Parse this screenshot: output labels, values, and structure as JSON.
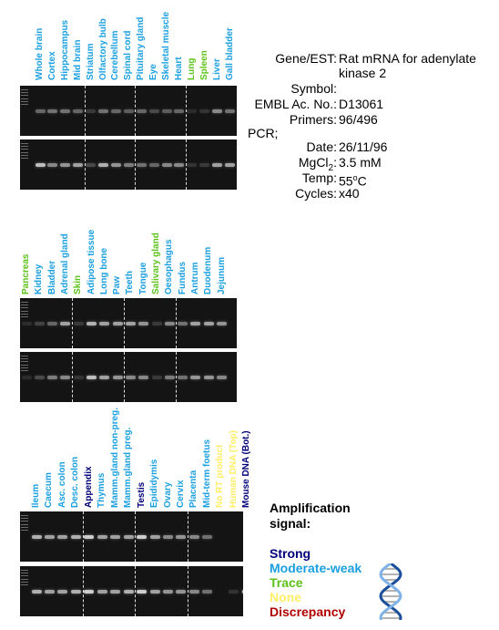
{
  "gene_info": {
    "gene_est_label": "Gene/EST:",
    "gene_est_value_line1": "Rat mRNA for adenylate",
    "gene_est_value_line2": "kinase 2",
    "symbol_label": "Symbol:",
    "symbol_value": "",
    "embl_label": "EMBL Ac. No.:",
    "embl_value": "D13061",
    "primers_label": "Primers:",
    "primers_value": "96/496",
    "pcr_label": "PCR;",
    "date_label": "Date:",
    "date_value": "26/11/96",
    "mgcl2_label": "MgCl",
    "mgcl2_sub": "2",
    "mgcl2_colon": ":",
    "mgcl2_value": "3.5 mM",
    "temp_label": "Temp:",
    "temp_value": "55",
    "temp_sup": "o",
    "temp_unit": "C",
    "cycles_label": "Cycles:",
    "cycles_value": "x40"
  },
  "legend": {
    "title": "Amplification\nsignal:",
    "items": [
      {
        "label": "Strong",
        "color": "#00007a"
      },
      {
        "label": "Moderate-weak",
        "color": "#1a9fe0"
      },
      {
        "label": "Trace",
        "color": "#5cc21a"
      },
      {
        "label": "None",
        "color": "#ffee66"
      },
      {
        "label": "Discrepancy",
        "color": "#b00000"
      }
    ]
  },
  "dna_icon": "dna-double-helix-icon",
  "panels": [
    {
      "tissues": [
        {
          "name": "Whole brain",
          "signal": "Moderate-weak"
        },
        {
          "name": "Cortex",
          "signal": "Moderate-weak"
        },
        {
          "name": "Hippocampus",
          "signal": "Moderate-weak"
        },
        {
          "name": "Mid brain",
          "signal": "Moderate-weak"
        },
        {
          "name": "Striatum",
          "signal": "Moderate-weak"
        },
        {
          "name": "Olfactory bulb",
          "signal": "Moderate-weak"
        },
        {
          "name": "Cerebellum",
          "signal": "Moderate-weak"
        },
        {
          "name": "Spinal cord",
          "signal": "Moderate-weak"
        },
        {
          "name": "Pituitary gland",
          "signal": "Moderate-weak"
        },
        {
          "name": "Eye",
          "signal": "Moderate-weak"
        },
        {
          "name": "Skeletal muscle",
          "signal": "Moderate-weak"
        },
        {
          "name": "Heart",
          "signal": "Moderate-weak"
        },
        {
          "name": "Lung",
          "signal": "Trace"
        },
        {
          "name": "Spleen",
          "signal": "Trace"
        },
        {
          "name": "Liver",
          "signal": "Moderate-weak"
        },
        {
          "name": "Gall bladder",
          "signal": "Moderate-weak"
        }
      ],
      "dividers_after": [
        4,
        8,
        12
      ],
      "gel_bands": [
        [
          0.45,
          0.5,
          0.5,
          0.45,
          0.2,
          0.5,
          0.45,
          0.4,
          0.45,
          0.3,
          0.4,
          0.45,
          0.1,
          0.15,
          0.6,
          0.5
        ],
        [
          0.8,
          0.6,
          0.65,
          0.7,
          0.3,
          0.75,
          0.65,
          0.55,
          0.5,
          0.45,
          0.6,
          0.6,
          0.15,
          0.2,
          0.7,
          0.7
        ]
      ]
    },
    {
      "tissues": [
        {
          "name": "Pancreas",
          "signal": "Trace"
        },
        {
          "name": "Kidney",
          "signal": "Moderate-weak"
        },
        {
          "name": "Bladder",
          "signal": "Moderate-weak"
        },
        {
          "name": "Adrenal gland",
          "signal": "Moderate-weak"
        },
        {
          "name": "Skin",
          "signal": "Trace"
        },
        {
          "name": "Adipose tissue",
          "signal": "Moderate-weak"
        },
        {
          "name": "Long bone",
          "signal": "Moderate-weak"
        },
        {
          "name": "Paw",
          "signal": "Moderate-weak"
        },
        {
          "name": "Teeth",
          "signal": "Moderate-weak"
        },
        {
          "name": "Tongue",
          "signal": "Moderate-weak"
        },
        {
          "name": "Salivary gland",
          "signal": "Trace"
        },
        {
          "name": "Oesophagus",
          "signal": "Moderate-weak"
        },
        {
          "name": "Fundus",
          "signal": "Moderate-weak"
        },
        {
          "name": "Antrum",
          "signal": "Moderate-weak"
        },
        {
          "name": "Duodenum",
          "signal": "Moderate-weak"
        },
        {
          "name": "Jejunum",
          "signal": "Moderate-weak"
        }
      ],
      "dividers_after": [
        4,
        8,
        12
      ],
      "gel_bands": [
        [
          0.1,
          0.25,
          0.45,
          0.7,
          0.2,
          0.75,
          0.7,
          0.7,
          0.7,
          0.65,
          0.2,
          0.6,
          0.5,
          0.7,
          0.7,
          0.65
        ],
        [
          0.1,
          0.3,
          0.55,
          0.6,
          0.15,
          0.8,
          0.7,
          0.65,
          0.6,
          0.6,
          0.2,
          0.55,
          0.5,
          0.65,
          0.65,
          0.6
        ]
      ]
    },
    {
      "tissues": [
        {
          "name": "Ileum",
          "signal": "Moderate-weak"
        },
        {
          "name": "Caecum",
          "signal": "Moderate-weak"
        },
        {
          "name": "Asc. colon",
          "signal": "Moderate-weak"
        },
        {
          "name": "Desc. colon",
          "signal": "Moderate-weak"
        },
        {
          "name": "Appendix",
          "signal": "Strong"
        },
        {
          "name": "Thymus",
          "signal": "Moderate-weak"
        },
        {
          "name": "Mamm.gland non-preg.",
          "signal": "Moderate-weak"
        },
        {
          "name": "Mamm.gland preg.",
          "signal": "Moderate-weak"
        },
        {
          "name": "Testis",
          "signal": "Strong"
        },
        {
          "name": "Epididymis",
          "signal": "Moderate-weak"
        },
        {
          "name": "Ovary",
          "signal": "Moderate-weak"
        },
        {
          "name": "Cervix",
          "signal": "Moderate-weak"
        },
        {
          "name": "Placenta",
          "signal": "Moderate-weak"
        },
        {
          "name": "Mid-term foetus",
          "signal": "Moderate-weak"
        },
        {
          "name": "No RT product",
          "signal": "None"
        },
        {
          "name": "Human DNA (Top)",
          "signal": "None"
        },
        {
          "name": "Mouse DNA (Bot.)",
          "signal": "Strong"
        }
      ],
      "dividers_after": [
        4,
        8,
        12
      ],
      "gel_bands": [
        [
          0.75,
          0.7,
          0.7,
          0.75,
          0.85,
          0.7,
          0.7,
          0.7,
          0.85,
          0.7,
          0.6,
          0.65,
          0.6,
          0.5,
          0.0,
          0.0,
          0.0
        ],
        [
          0.75,
          0.7,
          0.7,
          0.75,
          0.85,
          0.7,
          0.7,
          0.75,
          0.85,
          0.7,
          0.65,
          0.65,
          0.6,
          0.5,
          0.0,
          0.15,
          0.9
        ]
      ]
    }
  ]
}
